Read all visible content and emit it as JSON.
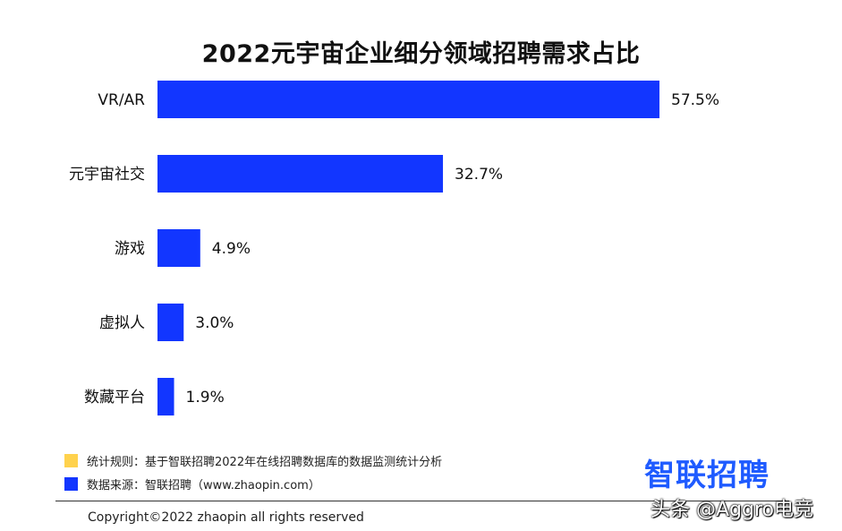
{
  "chart_data": {
    "type": "bar",
    "orientation": "horizontal",
    "title": "2022元宇宙企业细分领域招聘需求占比",
    "categories": [
      "VR/AR",
      "元宇宙社交",
      "游戏",
      "虚拟人",
      "数藏平台"
    ],
    "values": [
      57.5,
      32.7,
      4.9,
      3.0,
      1.9
    ],
    "value_labels": [
      "57.5%",
      "32.7%",
      "4.9%",
      "3.0%",
      "1.9%"
    ],
    "unit": "%",
    "xlim": [
      0,
      57.5
    ],
    "bar_color": "#1236ff",
    "grid": false
  },
  "legend": {
    "items": [
      {
        "color": "#ffd24d",
        "text": "统计规则：基于智联招聘2022年在线招聘数据库的数据监测统计分析"
      },
      {
        "color": "#1236ff",
        "text": "数据来源：智联招聘（www.zhaopin.com）"
      }
    ]
  },
  "brand": {
    "logo_text": "智联招聘",
    "logo_color": "#1f5bff"
  },
  "footer": {
    "copyright": "Copyright©2022 zhaopin all rights reserved"
  },
  "watermark": {
    "text": "头条 @Aggro电竞"
  }
}
